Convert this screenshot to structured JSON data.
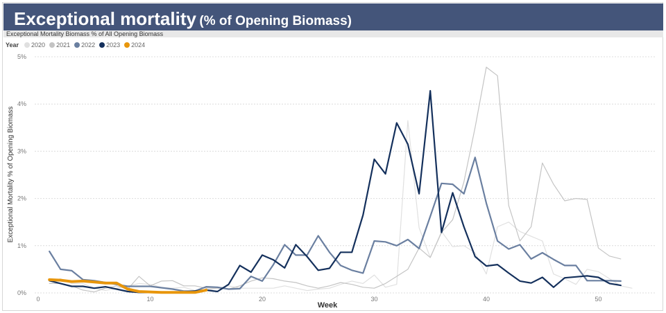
{
  "header": {
    "title": "Exceptional mortality",
    "title_suffix": "(% of Opening Biomass)"
  },
  "chart_data": {
    "type": "line",
    "title": "Exceptional Mortality Biomass % of All Opening Biomass",
    "xlabel": "Week",
    "ylabel": "Exceptional Mortality % of Opening Biomass",
    "xlim": [
      0,
      55
    ],
    "ylim": [
      0,
      5
    ],
    "x_ticks": [
      "0",
      "10",
      "20",
      "30",
      "40",
      "50"
    ],
    "x_tick_values": [
      0,
      10,
      20,
      30,
      40,
      50
    ],
    "y_ticks": [
      "0%",
      "1%",
      "2%",
      "3%",
      "4%",
      "5%"
    ],
    "y_tick_values": [
      0,
      1,
      2,
      3,
      4,
      5
    ],
    "grid": "horizontal dotted",
    "legend": {
      "title": "Year",
      "placement": "top-left"
    },
    "series": [
      {
        "name": "2020",
        "color": "#e0e0e0",
        "start_week": 1,
        "values": [
          0.25,
          0.3,
          0.2,
          0.2,
          0.1,
          0.05,
          0.1,
          0.15,
          0.2,
          0.18,
          0.12,
          0.1,
          0.12,
          0.05,
          0.05,
          0.1,
          0.15,
          0.1,
          0.1,
          0.1,
          0.1,
          0.15,
          0.1,
          0.05,
          0.08,
          0.1,
          0.18,
          0.25,
          0.2,
          0.38,
          0.12,
          0.18,
          3.65,
          1.38,
          0.75,
          1.3,
          0.98,
          1.0,
          0.85,
          0.4,
          1.4,
          1.5,
          1.3,
          1.2,
          1.1,
          0.4,
          0.3,
          0.18,
          0.5,
          0.45,
          0.3,
          0.15,
          0.1
        ]
      },
      {
        "name": "2021",
        "color": "#c4c4c4",
        "start_week": 1,
        "values": [
          0.2,
          0.2,
          0.15,
          0.06,
          0.02,
          0.1,
          0.15,
          0.08,
          0.35,
          0.15,
          0.25,
          0.26,
          0.15,
          0.15,
          0.1,
          0.1,
          0.08,
          0.15,
          0.25,
          0.32,
          0.3,
          0.25,
          0.22,
          0.15,
          0.1,
          0.15,
          0.22,
          0.18,
          0.12,
          0.1,
          0.2,
          0.35,
          0.5,
          0.95,
          0.75,
          1.28,
          1.55,
          2.35,
          3.5,
          4.78,
          4.6,
          1.85,
          1.1,
          1.4,
          2.75,
          2.3,
          1.95,
          2.0,
          1.98,
          0.95,
          0.78,
          0.72
        ]
      },
      {
        "name": "2022",
        "color": "#6a7fa0",
        "start_week": 1,
        "values": [
          0.88,
          0.5,
          0.47,
          0.28,
          0.26,
          0.22,
          0.18,
          0.14,
          0.14,
          0.14,
          0.11,
          0.08,
          0.04,
          0.04,
          0.13,
          0.12,
          0.08,
          0.09,
          0.35,
          0.25,
          0.6,
          1.02,
          0.8,
          0.8,
          1.21,
          0.86,
          0.58,
          0.48,
          0.42,
          1.1,
          1.08,
          1.0,
          1.13,
          0.94,
          1.62,
          2.32,
          2.3,
          2.1,
          2.87,
          1.9,
          1.1,
          0.93,
          1.02,
          0.72,
          0.85,
          0.71,
          0.58,
          0.58,
          0.26,
          0.26,
          0.26,
          0.25
        ]
      },
      {
        "name": "2023",
        "color": "#14305c",
        "start_week": 1,
        "values": [
          0.26,
          0.2,
          0.14,
          0.14,
          0.1,
          0.13,
          0.08,
          0.03,
          0.01,
          0.01,
          0.01,
          0.01,
          0.02,
          0.04,
          0.06,
          0.03,
          0.18,
          0.58,
          0.44,
          0.8,
          0.7,
          0.53,
          1.02,
          0.77,
          0.48,
          0.52,
          0.86,
          0.86,
          1.65,
          2.83,
          2.52,
          3.6,
          3.15,
          2.1,
          4.28,
          1.28,
          2.12,
          1.4,
          0.77,
          0.57,
          0.6,
          0.42,
          0.25,
          0.21,
          0.33,
          0.12,
          0.32,
          0.34,
          0.36,
          0.33,
          0.2,
          0.16
        ]
      },
      {
        "name": "2024",
        "color": "#e8960c",
        "start_week": 1,
        "values": [
          0.28,
          0.27,
          0.24,
          0.25,
          0.23,
          0.21,
          0.21,
          0.08,
          0.03,
          0.02,
          0.01,
          0.01,
          0.01,
          0.01,
          0.06
        ]
      }
    ]
  }
}
